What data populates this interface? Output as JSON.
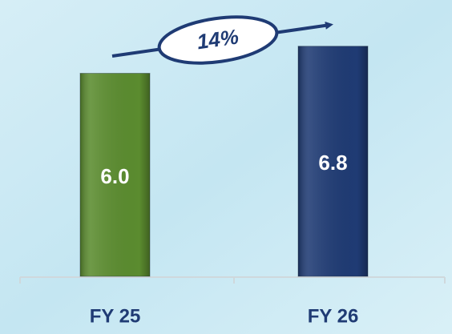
{
  "chart_data": {
    "type": "bar",
    "categories": [
      "FY 25",
      "FY 26"
    ],
    "values": [
      6.0,
      6.8
    ],
    "value_labels": [
      "6.0",
      "6.8"
    ],
    "colors": [
      "#5b8c2f",
      "#1f3b74"
    ],
    "annotation": "14%",
    "ylim": [
      0,
      8
    ]
  }
}
